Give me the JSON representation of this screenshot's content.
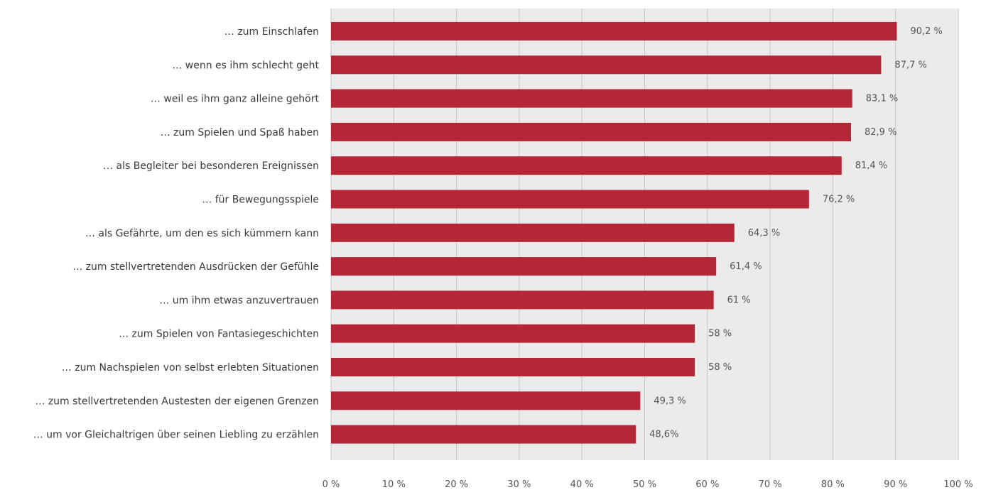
{
  "chart_data": {
    "type": "bar",
    "orientation": "horizontal",
    "title": "",
    "xlabel": "",
    "ylabel": "",
    "xlim": [
      0,
      100
    ],
    "grid": true,
    "legend": "none",
    "colors": {
      "bar": "#b52636",
      "plot_background": "#ebebeb",
      "grid": "#c4c4c4"
    },
    "categories": [
      "… zum Einschlafen",
      "… wenn es ihm schlecht geht",
      "… weil es ihm ganz alleine gehört",
      "… zum Spielen und Spaß haben",
      "… als Begleiter bei besonderen Ereignissen",
      "… für Bewegungsspiele",
      "… als Gefährte, um den es sich kümmern kann",
      "… zum stellvertretenden Ausdrücken der Gefühle",
      "… um ihm etwas anzuvertrauen",
      "… zum Spielen von Fantasiegeschichten",
      "… zum Nachspielen von selbst erlebten Situationen",
      "… zum stellvertretenden Austesten der eigenen Grenzen",
      "… um vor Gleichaltrigen über seinen Liebling zu erzählen"
    ],
    "values": [
      90.2,
      87.7,
      83.1,
      82.9,
      81.4,
      76.2,
      64.3,
      61.4,
      61,
      58,
      58,
      49.3,
      48.6
    ],
    "value_labels": [
      "90,2 %",
      "87,7 %",
      "83,1 %",
      "82,9 %",
      "81,4 %",
      "76,2 %",
      "64,3 %",
      "61,4 %",
      "61 %",
      "58 %",
      "58 %",
      "49,3 %",
      "48,6%"
    ],
    "x_ticks": [
      0,
      10,
      20,
      30,
      40,
      50,
      60,
      70,
      80,
      90,
      100
    ],
    "x_tick_labels": [
      "0 %",
      "10 %",
      "20 %",
      "30 %",
      "40 %",
      "50 %",
      "60 %",
      "70 %",
      "80 %",
      "90 %",
      "100 %"
    ]
  }
}
